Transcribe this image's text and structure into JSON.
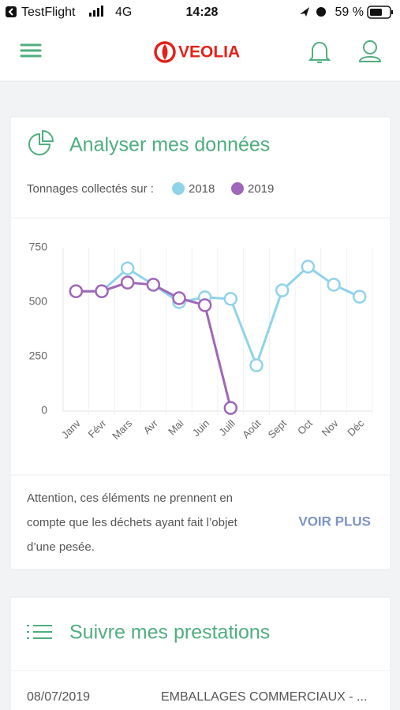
{
  "status_bar": {
    "carrier": "TestFlight",
    "network": "4G",
    "time": "14:28",
    "battery": "59 %"
  },
  "header": {
    "logo": "VEOLIA"
  },
  "analysis_card": {
    "title": "Analyser mes données",
    "legend_label": "Tonnages collectés sur :",
    "note_lines": [
      "Attention, ces éléments ne prennent en",
      "compte que les déchets ayant fait l’objet",
      "d’une pesée."
    ],
    "action": "VOIR PLUS"
  },
  "chart_data": {
    "type": "line",
    "categories": [
      "Janv",
      "Févr",
      "Mars",
      "Avr",
      "Mai",
      "Juin",
      "Juill",
      "Août",
      "Sept",
      "Oct",
      "Nov",
      "Déc"
    ],
    "series": [
      {
        "name": "2018",
        "color": "#8fd3ea",
        "values": [
          550,
          550,
          655,
          580,
          500,
          522,
          515,
          210,
          554,
          663,
          580,
          525
        ]
      },
      {
        "name": "2019",
        "color": "#a066b8",
        "values": [
          550,
          550,
          590,
          580,
          518,
          486,
          14,
          null,
          null,
          null,
          null,
          null
        ]
      }
    ],
    "ylim": [
      0,
      750
    ],
    "yticks": [
      0,
      250,
      500,
      750
    ],
    "grid": false
  },
  "services_card": {
    "title": "Suivre mes prestations",
    "rows": [
      [
        "08/07/2019",
        "EMBALLAGES COMMERCIAUX - ..."
      ]
    ]
  }
}
